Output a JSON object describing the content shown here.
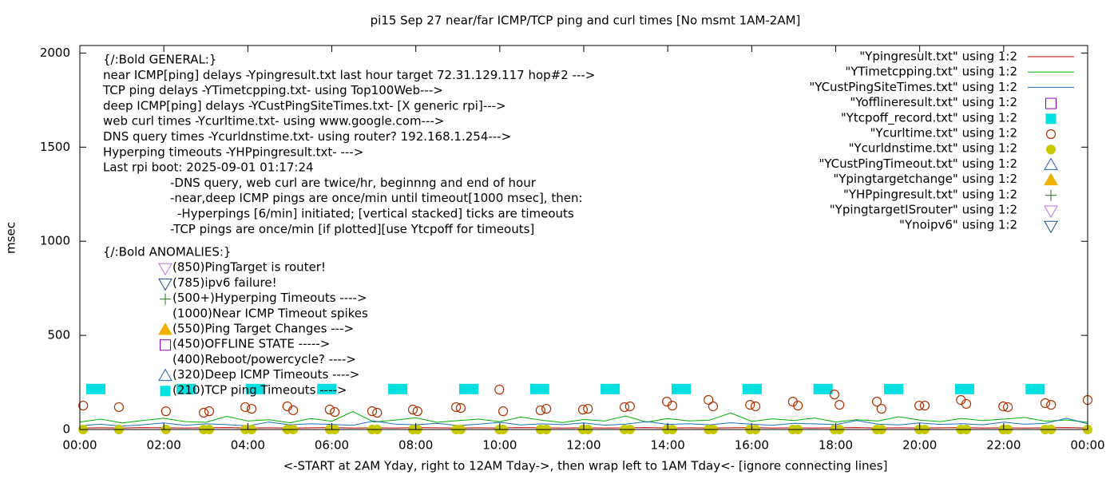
{
  "chart_data": {
    "type": "line",
    "title": "pi15 Sep 27  near/far ICMP/TCP ping and curl times [No msmt 1AM-2AM]",
    "x_label": "<-START at 2AM Yday, right to 12AM Tday->, then wrap left to 1AM Tday<- [ignore connecting lines]",
    "y_label": "msec",
    "xlim": [
      0,
      24
    ],
    "ylim": [
      0,
      2040
    ],
    "xticks": [
      {
        "value": 0,
        "label": "00:00"
      },
      {
        "value": 2,
        "label": "02:00"
      },
      {
        "value": 4,
        "label": "04:00"
      },
      {
        "value": 6,
        "label": "06:00"
      },
      {
        "value": 8,
        "label": "08:00"
      },
      {
        "value": 10,
        "label": "10:00"
      },
      {
        "value": 12,
        "label": "12:00"
      },
      {
        "value": 14,
        "label": "14:00"
      },
      {
        "value": 16,
        "label": "16:00"
      },
      {
        "value": 18,
        "label": "18:00"
      },
      {
        "value": 20,
        "label": "20:00"
      },
      {
        "value": 22,
        "label": "22:00"
      },
      {
        "value": 24,
        "label": "00:00"
      }
    ],
    "yticks": [
      0,
      500,
      1000,
      1500,
      2000
    ],
    "grid": false,
    "legend": "top-right",
    "annotations": [
      "{/:Bold GENERAL:}",
      "near ICMP[ping] delays -Ypingresult.txt last hour target 72.31.129.117 hop#2 --->",
      "TCP ping delays -YTimetcpping.txt- using Top100Web--->",
      "deep ICMP[ping] delays -YCustPingSiteTimes.txt- [X generic rpi]--->",
      "web curl times -Ycurltime.txt- using www.google.com--->",
      "DNS query times -Ycurldnstime.txt- using router? 192.168.1.254--->",
      "Hyperping timeouts -YHPpingresult.txt- --->",
      "Last rpi boot: 2025-09-01 01:17:24",
      "-DNS query, web curl are twice/hr, beginnng and end of hour",
      "-near,deep ICMP pings are once/min until timeout[1000 msec], then:",
      "-Hyperpings [6/min] initiated; [vertical stacked] ticks are timeouts",
      "-TCP pings are once/min [if plotted][use Ytcpoff for timeouts]",
      "{/:Bold ANOMALIES:}",
      "(850)PingTarget is router!",
      "(785)ipv6 failure!",
      "(500+)Hyperping Timeouts ---->",
      "(1000)Near ICMP Timeout spikes",
      "(550)Ping Target Changes --->",
      "(450)OFFLINE STATE ----->",
      "(400)Reboot/powercycle? ---->",
      "(320)Deep ICMP Timeouts ---->",
      "(210)TCP ping Timeouts ---->"
    ],
    "series": [
      {
        "name": "\"Ypingresult.txt\" using 1:2",
        "color": "#c00000",
        "marker": "line",
        "x": [
          0,
          0.5,
          1,
          1.5,
          2,
          2.5,
          3,
          3.5,
          4,
          4.5,
          5,
          5.5,
          6,
          6.5,
          7,
          7.5,
          8,
          8.5,
          9,
          9.5,
          10,
          10.5,
          11,
          11.5,
          12,
          12.5,
          13,
          13.5,
          14,
          14.5,
          15,
          15.5,
          16,
          16.5,
          17,
          17.5,
          18,
          18.5,
          19,
          19.5,
          20,
          20.5,
          21,
          21.5,
          22,
          22.5,
          23,
          23.5,
          24
        ],
        "values": [
          8,
          9,
          8,
          10,
          9,
          8,
          9,
          10,
          8,
          9,
          8,
          9,
          10,
          8,
          9,
          8,
          10,
          9,
          8,
          9,
          8,
          10,
          9,
          8,
          9,
          8,
          9,
          10,
          8,
          9,
          8,
          9,
          10,
          8,
          9,
          8,
          9,
          10,
          8,
          9,
          8,
          9,
          10,
          8,
          9,
          8,
          9,
          10,
          8
        ]
      },
      {
        "name": "\"YTimetcpping.txt\" using 1:2",
        "color": "#00b000",
        "marker": "line",
        "x": [
          0,
          0.5,
          1,
          1.5,
          2,
          2.5,
          3,
          3.5,
          4,
          4.5,
          5,
          5.5,
          6,
          6.5,
          7,
          7.5,
          8,
          8.5,
          9,
          9.5,
          10,
          10.5,
          11,
          11.5,
          12,
          12.5,
          13,
          13.5,
          14,
          14.5,
          15,
          15.5,
          16,
          16.5,
          17,
          17.5,
          18,
          18.5,
          19,
          19.5,
          20,
          20.5,
          21,
          21.5,
          22,
          22.5,
          23,
          23.5,
          24
        ],
        "values": [
          40,
          55,
          35,
          48,
          60,
          42,
          38,
          70,
          45,
          52,
          36,
          58,
          44,
          95,
          40,
          50,
          62,
          38,
          47,
          55,
          41,
          66,
          49,
          37,
          53,
          45,
          72,
          39,
          58,
          46,
          50,
          88,
          43,
          57,
          48,
          61,
          40,
          52,
          45,
          68,
          50,
          42,
          59,
          47,
          55,
          64,
          44,
          51,
          38
        ]
      },
      {
        "name": "\"YCustPingSiteTimes.txt\" using 1:2",
        "color": "#1f6fc0",
        "marker": "line",
        "x": [
          0,
          0.5,
          1,
          1.5,
          2,
          2.5,
          3,
          3.5,
          4,
          4.5,
          5,
          5.5,
          6,
          6.5,
          7,
          7.5,
          8,
          8.5,
          9,
          9.5,
          10,
          10.5,
          11,
          11.5,
          12,
          12.5,
          13,
          13.5,
          14,
          14.5,
          15,
          15.5,
          16,
          16.5,
          17,
          17.5,
          18,
          18.5,
          19,
          19.5,
          20,
          20.5,
          21,
          21.5,
          22,
          22.5,
          23,
          23.5,
          24
        ],
        "values": [
          20,
          28,
          18,
          25,
          35,
          22,
          30,
          26,
          19,
          40,
          24,
          31,
          27,
          22,
          45,
          29,
          25,
          33,
          21,
          28,
          38,
          24,
          30,
          26,
          35,
          23,
          29,
          42,
          27,
          31,
          25,
          36,
          28,
          22,
          33,
          30,
          26,
          48,
          29,
          24,
          35,
          27,
          31,
          25,
          39,
          28,
          33,
          60,
          30
        ]
      },
      {
        "name": "\"Yofflineresult.txt\" using 1:2",
        "color": "#9400d3",
        "marker": "square-open",
        "x": [],
        "values": []
      },
      {
        "name": "\"Ytcpoff_record.txt\" using 1:2",
        "color": "#00e0e0",
        "marker": "square",
        "x": [
          0.38,
          2.53,
          4.18,
          5.88,
          7.57,
          9.26,
          10.95,
          12.63,
          14.32,
          16.01,
          17.7,
          19.38,
          21.07,
          22.75
        ],
        "values": [
          215,
          215,
          215,
          215,
          215,
          215,
          215,
          215,
          215,
          215,
          215,
          215,
          215,
          215
        ]
      },
      {
        "name": "\"Ycurltime.txt\" using 1:2",
        "color": "#b03000",
        "marker": "circle-open",
        "x": [
          0.08,
          0.93,
          2.05,
          2.95,
          3.08,
          3.94,
          4.09,
          4.94,
          5.08,
          5.95,
          6.07,
          6.96,
          7.08,
          7.93,
          8.04,
          8.96,
          9.07,
          9.99,
          10.08,
          10.97,
          11.11,
          11.98,
          12.1,
          12.97,
          13.1,
          13.98,
          14.11,
          14.97,
          15.08,
          15.96,
          16.09,
          16.98,
          17.1,
          17.97,
          18.09,
          18.98,
          19.09,
          19.99,
          20.12,
          20.98,
          21.11,
          21.99,
          22.1,
          22.99,
          23.13,
          24.0
        ],
        "values": [
          127,
          119,
          97,
          89,
          97,
          119,
          110,
          123,
          102,
          106,
          93,
          97,
          89,
          106,
          97,
          119,
          114,
          212,
          97,
          102,
          110,
          106,
          110,
          119,
          123,
          148,
          127,
          157,
          123,
          131,
          123,
          148,
          127,
          186,
          131,
          148,
          110,
          127,
          127,
          157,
          136,
          123,
          119,
          140,
          131,
          157
        ]
      },
      {
        "name": "\"Ycurldnstime.txt\" using 1:2",
        "color": "#c8c800",
        "marker": "circle",
        "x": [
          0.08,
          0.93,
          2.05,
          2.95,
          3.08,
          3.94,
          4.09,
          4.94,
          5.08,
          5.95,
          6.07,
          6.96,
          7.08,
          7.93,
          8.04,
          8.96,
          9.07,
          9.99,
          10.08,
          10.97,
          11.11,
          11.98,
          12.1,
          12.97,
          13.1,
          13.98,
          14.11,
          14.97,
          15.08,
          15.96,
          16.09,
          16.98,
          17.1,
          17.97,
          18.09,
          18.98,
          19.09,
          19.99,
          20.12,
          20.98,
          21.11,
          21.99,
          22.1,
          22.99,
          23.13,
          24.0
        ],
        "values": [
          0,
          0,
          0,
          0,
          0,
          0,
          0,
          0,
          0,
          0,
          0,
          0,
          0,
          0,
          0,
          0,
          0,
          0,
          0,
          0,
          0,
          0,
          0,
          0,
          0,
          0,
          0,
          0,
          0,
          0,
          0,
          0,
          0,
          0,
          0,
          0,
          0,
          0,
          0,
          0,
          0,
          0,
          0,
          0,
          0,
          0
        ]
      },
      {
        "name": "\"YCustPingTimeout.txt\" using 1:2",
        "color": "#2060c0",
        "marker": "triangle-open",
        "x": [],
        "values": []
      },
      {
        "name": "\"Ypingtargetchange\" using 1:2",
        "color": "#f0b000",
        "marker": "triangle",
        "x": [],
        "values": []
      },
      {
        "name": "\"YHPpingresult.txt\" using 1:2",
        "color": "#207020",
        "marker": "plus",
        "x": [],
        "values": []
      },
      {
        "name": "\"YpingtargetISrouter\" using 1:2",
        "color": "#c070e0",
        "marker": "triangle-down-open",
        "x": [],
        "values": []
      },
      {
        "name": "\"Ynoipv6\" using 1:2",
        "color": "#1a4a8a",
        "marker": "triangle-down-open",
        "x": [],
        "values": []
      }
    ]
  }
}
